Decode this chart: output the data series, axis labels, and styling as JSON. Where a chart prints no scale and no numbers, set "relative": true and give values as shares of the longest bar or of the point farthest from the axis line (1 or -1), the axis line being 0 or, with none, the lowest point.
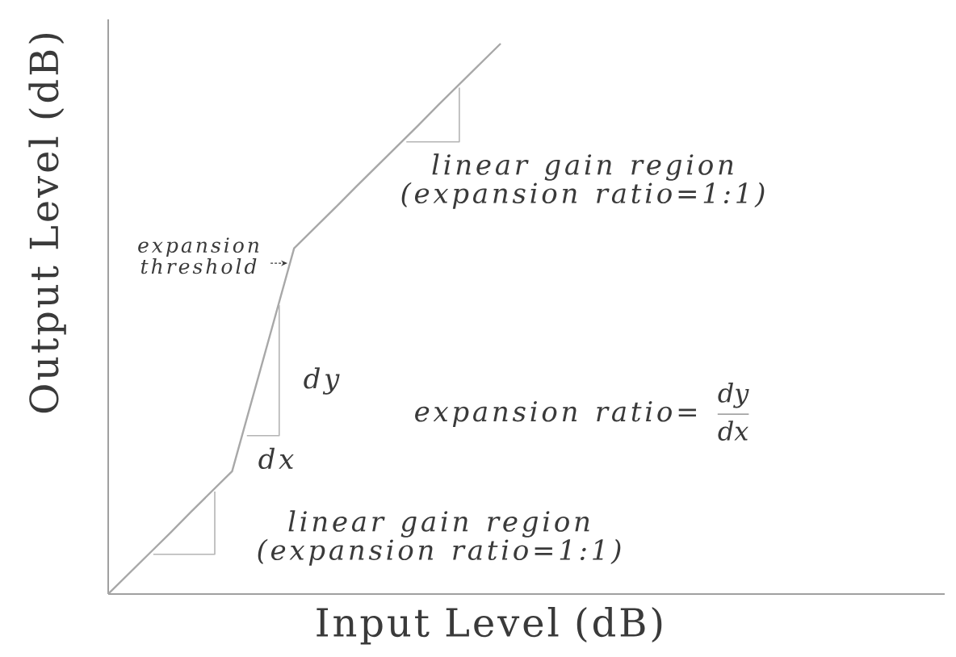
{
  "chart_data": {
    "type": "line",
    "xlabel": "Input Level (dB)",
    "ylabel": "Output Level (dB)",
    "categories": [
      null,
      null,
      null,
      null,
      null,
      null,
      null,
      null,
      null,
      null,
      null,
      null,
      null,
      null,
      null,
      null,
      null,
      null,
      null,
      null,
      null,
      null,
      null,
      null,
      null,
      null,
      null,
      null,
      null,
      null,
      null,
      null,
      null,
      null,
      null,
      null,
      null,
      null,
      null,
      null,
      null
    ],
    "relative": true,
    "series": [
      {
        "color": "#a8a8a8",
        "values": [
          0,
          0.037,
          0.074,
          0.111,
          0.149,
          0.186,
          0.223,
          0.358,
          0.493,
          0.628,
          0.665,
          0.702,
          0.74,
          0.777,
          0.814,
          0.851,
          0.889,
          0.926,
          0.963,
          1,
          null,
          null,
          null,
          null,
          null,
          null,
          null,
          null,
          null,
          null,
          null,
          null,
          null,
          null,
          null,
          null,
          null,
          null,
          null,
          null,
          null
        ]
      }
    ],
    "annotations": [
      "linear gain region (expansion ratio=1:1)",
      "expansion threshold",
      "dy",
      "expansion ratio=",
      "\\frac{dy}{dx}",
      "dx",
      "linear gain region (expansion ratio=1:1)"
    ],
    "marker": "none",
    "line_style": "solid"
  }
}
